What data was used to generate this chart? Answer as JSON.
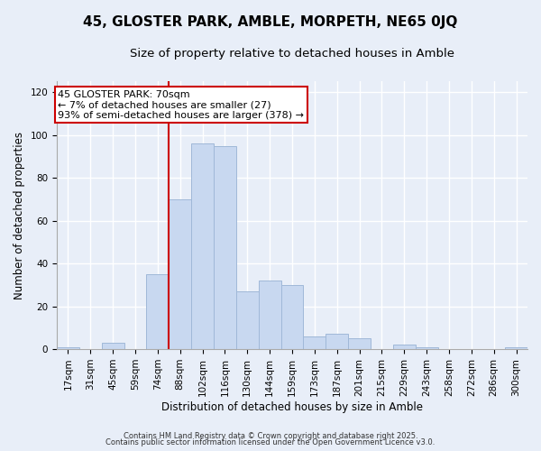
{
  "title": "45, GLOSTER PARK, AMBLE, MORPETH, NE65 0JQ",
  "subtitle": "Size of property relative to detached houses in Amble",
  "xlabel": "Distribution of detached houses by size in Amble",
  "ylabel": "Number of detached properties",
  "bin_labels": [
    "17sqm",
    "31sqm",
    "45sqm",
    "59sqm",
    "74sqm",
    "88sqm",
    "102sqm",
    "116sqm",
    "130sqm",
    "144sqm",
    "159sqm",
    "173sqm",
    "187sqm",
    "201sqm",
    "215sqm",
    "229sqm",
    "243sqm",
    "258sqm",
    "272sqm",
    "286sqm",
    "300sqm"
  ],
  "bar_values": [
    1,
    0,
    3,
    0,
    35,
    70,
    96,
    95,
    27,
    32,
    30,
    6,
    7,
    5,
    0,
    2,
    1,
    0,
    0,
    0,
    1
  ],
  "bar_color": "#c8d8f0",
  "bar_edge_color": "#a0b8d8",
  "vline_x_index": 4,
  "vline_color": "#cc0000",
  "annotation_line1": "45 GLOSTER PARK: 70sqm",
  "annotation_line2": "← 7% of detached houses are smaller (27)",
  "annotation_line3": "93% of semi-detached houses are larger (378) →",
  "annotation_box_color": "#ffffff",
  "annotation_box_edge": "#cc0000",
  "ylim": [
    0,
    125
  ],
  "yticks": [
    0,
    20,
    40,
    60,
    80,
    100,
    120
  ],
  "footnote1": "Contains HM Land Registry data © Crown copyright and database right 2025.",
  "footnote2": "Contains public sector information licensed under the Open Government Licence v3.0.",
  "bg_color": "#e8eef8",
  "grid_color": "#ffffff",
  "title_fontsize": 11,
  "subtitle_fontsize": 9.5,
  "label_fontsize": 8.5,
  "tick_fontsize": 7.5,
  "annotation_fontsize": 8
}
